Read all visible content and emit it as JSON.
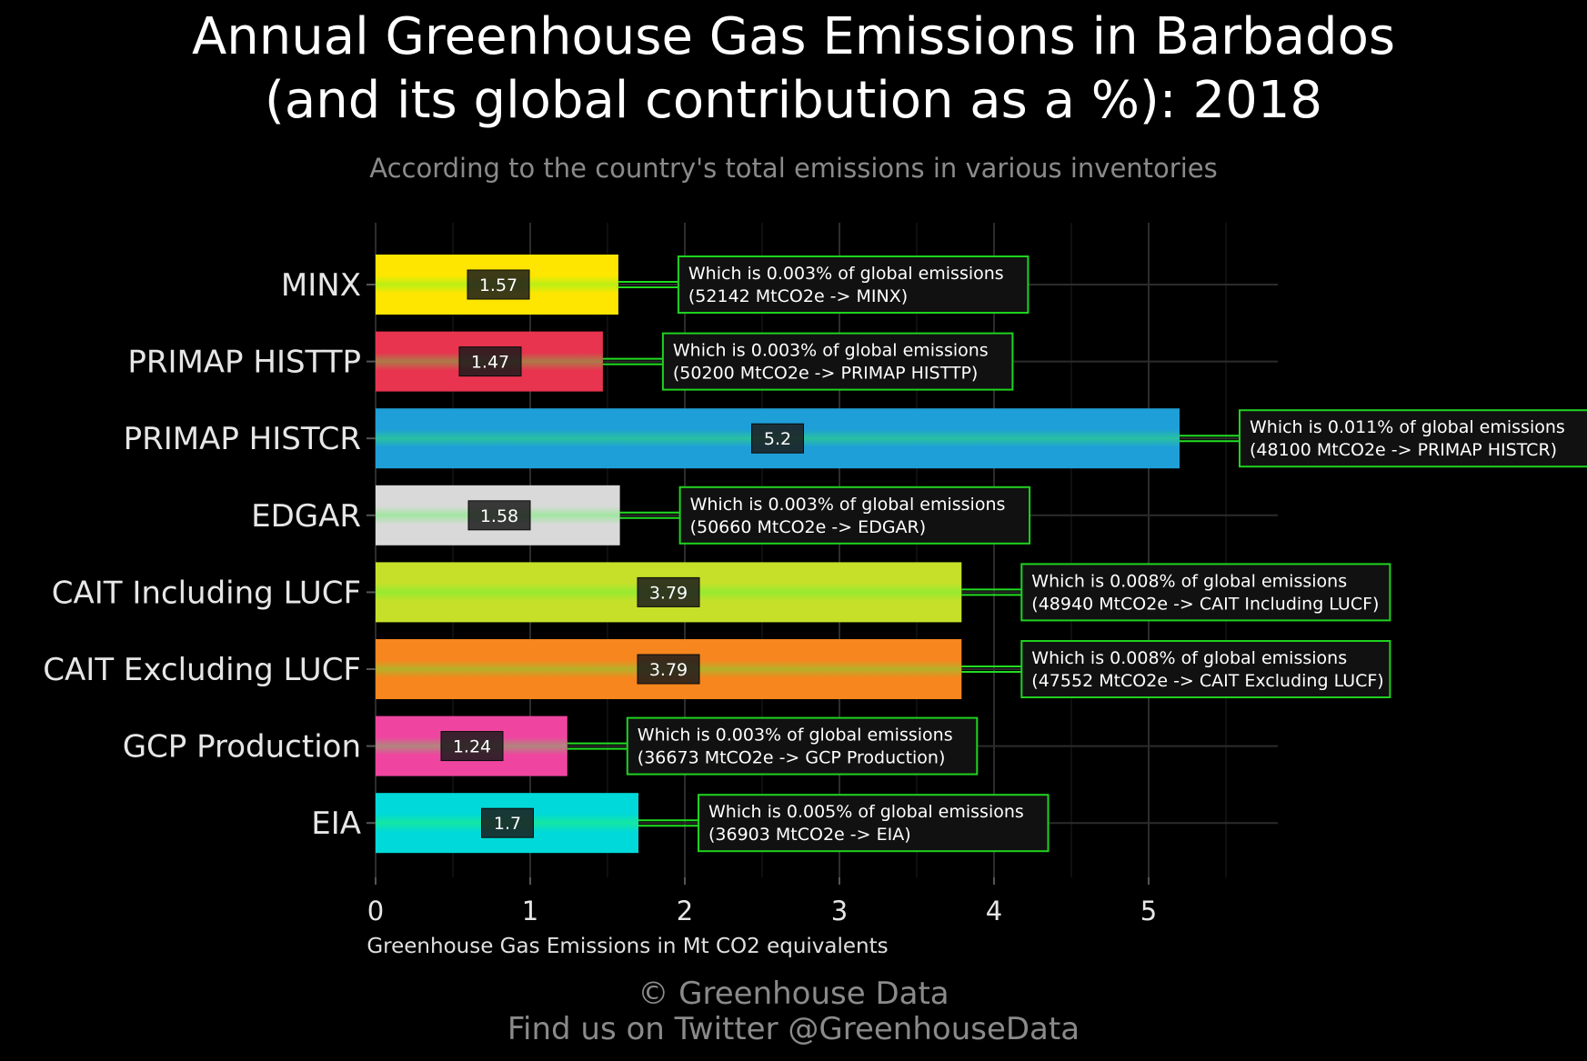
{
  "title_line1": "Annual Greenhouse Gas Emissions in Barbados",
  "title_line2": "(and its global contribution as a %): 2018",
  "subtitle": "According to the country's total emissions in various inventories",
  "footer_line1": "© Greenhouse Data",
  "footer_line2": "Find us on Twitter @GreenhouseData",
  "chart_data": {
    "type": "bar",
    "orientation": "horizontal",
    "categories": [
      "MINX",
      "PRIMAP HISTTP",
      "PRIMAP HISTCR",
      "EDGAR",
      "CAIT Including LUCF",
      "CAIT Excluding LUCF",
      "GCP Production",
      "EIA"
    ],
    "values": [
      1.57,
      1.47,
      5.2,
      1.58,
      3.79,
      3.79,
      1.24,
      1.7
    ],
    "value_labels": [
      "1.57",
      "1.47",
      "5.2",
      "1.58",
      "3.79",
      "3.79",
      "1.24",
      "1.7"
    ],
    "colors": [
      "#ffe600",
      "#e8344f",
      "#1f9fd8",
      "#d9d9d9",
      "#c6e02a",
      "#f7861e",
      "#ef45a0",
      "#00d9d9"
    ],
    "annotations": [
      [
        "Which is 0.003% of global emissions",
        "(52142 MtCO2e -> MINX)"
      ],
      [
        "Which is 0.003% of global emissions",
        "(50200 MtCO2e -> PRIMAP HISTTP)"
      ],
      [
        "Which is 0.011% of global emissions",
        "(48100 MtCO2e -> PRIMAP HISTCR)"
      ],
      [
        "Which is 0.003% of global emissions",
        "(50660 MtCO2e -> EDGAR)"
      ],
      [
        "Which is 0.008% of global emissions",
        "(48940 MtCO2e -> CAIT Including LUCF)"
      ],
      [
        "Which is 0.008% of global emissions",
        "(47552 MtCO2e -> CAIT Excluding LUCF)"
      ],
      [
        "Which is 0.003% of global emissions",
        "(36673 MtCO2e -> GCP Production)"
      ],
      [
        "Which is 0.005% of global emissions",
        "(36903 MtCO2e -> EIA)"
      ]
    ],
    "xlabel": "Greenhouse Gas Emissions in Mt CO2 equivalents",
    "xlim": [
      0,
      5.85
    ],
    "xticks": [
      0,
      1,
      2,
      3,
      4,
      5
    ],
    "grid": true,
    "legend": "none"
  }
}
